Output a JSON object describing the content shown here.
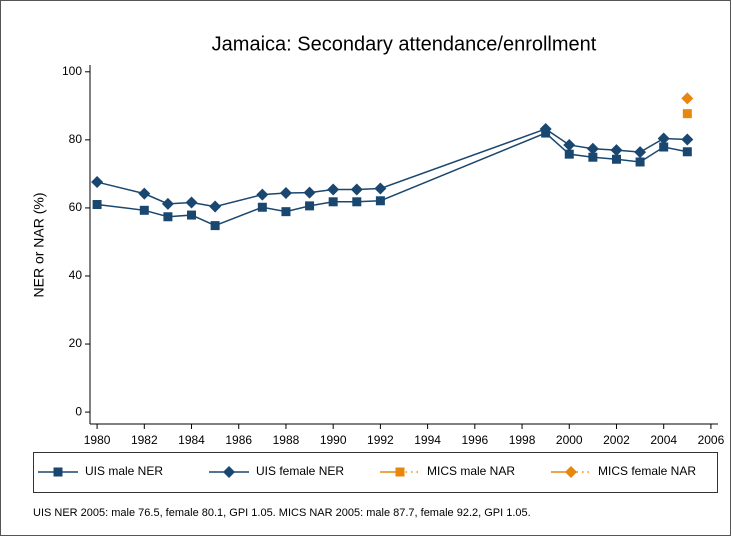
{
  "chart_data": {
    "type": "line",
    "title": "Jamaica: Secondary attendance/enrollment",
    "y_label": "NER or NAR (%)",
    "note": "UIS NER 2005: male 76.5, female 80.1, GPI 1.05. MICS NAR 2005: male 87.7, female 92.2, GPI 1.05.",
    "x": [
      1980,
      1982,
      1983,
      1984,
      1985,
      1987,
      1988,
      1989,
      1990,
      1991,
      1992,
      1999,
      2000,
      2001,
      2002,
      2003,
      2004,
      2005
    ],
    "series": [
      {
        "name": "UIS male NER",
        "color": "#1a476f",
        "marker": "square",
        "values": [
          61,
          59.3,
          57.4,
          57.9,
          54.8,
          60.2,
          58.9,
          60.6,
          61.8,
          61.8,
          62.1,
          82,
          75.8,
          74.9,
          74.3,
          73.5,
          77.9,
          76.5
        ]
      },
      {
        "name": "UIS female NER",
        "color": "#1a476f",
        "marker": "diamond",
        "values": [
          67.6,
          64.2,
          61.2,
          61.6,
          60.4,
          63.9,
          64.4,
          64.5,
          65.4,
          65.4,
          65.7,
          83.2,
          78.5,
          77.4,
          77,
          76.4,
          80.4,
          80.1
        ]
      },
      {
        "name": "MICS male NAR",
        "color": "#e8870e",
        "marker": "square",
        "values": [
          null,
          null,
          null,
          null,
          null,
          null,
          null,
          null,
          null,
          null,
          null,
          null,
          null,
          null,
          null,
          null,
          null,
          87.7
        ]
      },
      {
        "name": "MICS female NAR",
        "color": "#e8870e",
        "marker": "diamond",
        "values": [
          null,
          null,
          null,
          null,
          null,
          null,
          null,
          null,
          null,
          null,
          null,
          null,
          null,
          null,
          null,
          null,
          null,
          92.2
        ]
      }
    ],
    "xlim": [
      1979.7,
      2006.3
    ],
    "ylim": [
      -3.5,
      102
    ],
    "xticks": [
      1980,
      1982,
      1984,
      1986,
      1988,
      1990,
      1992,
      1994,
      1996,
      1998,
      2000,
      2002,
      2004,
      2006
    ],
    "yticks": [
      0,
      20,
      40,
      60,
      80,
      100
    ]
  }
}
